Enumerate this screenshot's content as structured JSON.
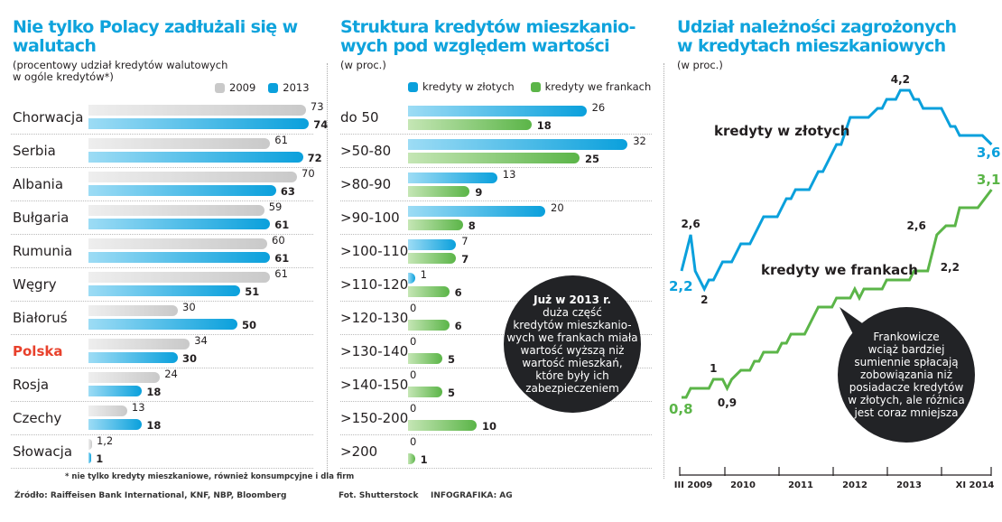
{
  "chart_data": [
    {
      "type": "bar",
      "title": "Nie tylko Polacy zadłużali się w walutach",
      "subtitle": "(procentowy udział kredytów walutowych w ogóle kredytów*)",
      "legend": "top-right",
      "categories": [
        "Chorwacja",
        "Serbia",
        "Albania",
        "Bułgaria",
        "Rumunia",
        "Węgry",
        "Białoruś",
        "Polska",
        "Rosja",
        "Czechy",
        "Słowacja"
      ],
      "highlight_category": "Polska",
      "highlight_color": "#e8412c",
      "series": [
        {
          "name": "2009",
          "color": "#c9c9c9",
          "values": [
            73,
            61,
            70,
            59,
            60,
            61,
            30,
            34,
            24,
            13,
            1.2
          ],
          "labels": [
            "73",
            "61",
            "70",
            "59",
            "60",
            "61",
            "30",
            "34",
            "24",
            "13",
            "1,2"
          ]
        },
        {
          "name": "2013",
          "color": "#0aa0dc",
          "values": [
            74,
            72,
            63,
            61,
            61,
            51,
            50,
            30,
            18,
            18,
            1
          ],
          "labels": [
            "74",
            "72",
            "63",
            "61",
            "61",
            "51",
            "50",
            "30",
            "18",
            "18",
            "1"
          ]
        }
      ],
      "footnote": "* nie tylko kredyty mieszkaniowe, również konsumpcyjne i dla firm",
      "source": "Źródło: Raiffeisen Bank International, KNF, NBP, Bloomberg"
    },
    {
      "type": "bar",
      "title": "Struktura kredytów mieszkanio-wych pod względem wartości",
      "title_lines": [
        "Struktura kredytów mieszkanio-",
        "wych pod względem wartości"
      ],
      "subtitle": "(w proc.)",
      "legend": "top",
      "categories": [
        "do 50",
        ">50-80",
        ">80-90",
        ">90-100",
        ">100-110",
        ">110-120",
        ">120-130",
        ">130-140",
        ">140-150",
        ">150-200",
        ">200"
      ],
      "series": [
        {
          "name": "kredyty w złotych",
          "color": "#0aa0dc",
          "values": [
            26,
            32,
            13,
            20,
            7,
            1,
            0,
            0,
            0,
            0,
            0
          ]
        },
        {
          "name": "kredyty we frankach",
          "color": "#5bb548",
          "values": [
            18,
            25,
            9,
            8,
            7,
            6,
            6,
            5,
            5,
            10,
            1
          ]
        }
      ],
      "annotation": {
        "bold": "Już w 2013 r.",
        "lines": [
          "duża część",
          "kredytów mieszkanio-",
          "wych we frankach miała",
          "wartość wyższą niż",
          "wartość mieszkań,",
          "które były ich",
          "zabezpieczeniem"
        ]
      },
      "credits": [
        "Fot. Shutterstock",
        "INFOGRAFIKA: AG"
      ]
    },
    {
      "type": "line",
      "title": "Udział należności zagrożonych w kredytach mieszkaniowych",
      "title_lines": [
        "Udział należności zagrożonych",
        "w kredytach mieszkaniowych"
      ],
      "subtitle": "(w proc.)",
      "xticks": [
        "III 2009",
        "2010",
        "2011",
        "2012",
        "2013",
        "XI 2014"
      ],
      "series": [
        {
          "name": "kredyty w złotych",
          "color": "#0aa0dc",
          "points": [
            [
              "2009-03",
              2.2
            ],
            [
              "2009-05",
              2.6
            ],
            [
              "2009-06",
              2.2
            ],
            [
              "2009-08",
              2.0
            ],
            [
              "2009-09",
              2.1
            ],
            [
              "2009-10",
              2.1
            ],
            [
              "2009-12",
              2.3
            ],
            [
              "2010-02",
              2.3
            ],
            [
              "2010-04",
              2.5
            ],
            [
              "2010-06",
              2.5
            ],
            [
              "2010-09",
              2.8
            ],
            [
              "2010-12",
              2.8
            ],
            [
              "2011-02",
              3.0
            ],
            [
              "2011-03",
              3.0
            ],
            [
              "2011-04",
              3.1
            ],
            [
              "2011-07",
              3.1
            ],
            [
              "2011-09",
              3.3
            ],
            [
              "2011-10",
              3.3
            ],
            [
              "2012-01",
              3.6
            ],
            [
              "2012-02",
              3.6
            ],
            [
              "2012-04",
              3.9
            ],
            [
              "2012-08",
              3.9
            ],
            [
              "2012-10",
              4.0
            ],
            [
              "2012-11",
              4.0
            ],
            [
              "2012-12",
              4.1
            ],
            [
              "2013-02",
              4.1
            ],
            [
              "2013-03",
              4.2
            ],
            [
              "2013-05",
              4.2
            ],
            [
              "2013-06",
              4.1
            ],
            [
              "2013-07",
              4.1
            ],
            [
              "2013-08",
              4.0
            ],
            [
              "2013-12",
              4.0
            ],
            [
              "2014-02",
              3.8
            ],
            [
              "2014-03",
              3.8
            ],
            [
              "2014-04",
              3.7
            ],
            [
              "2014-09",
              3.7
            ],
            [
              "2014-11",
              3.6
            ]
          ],
          "labels": [
            {
              "date": "2009-03",
              "text": "2,2"
            },
            {
              "date": "2009-05",
              "text": "2,6"
            },
            {
              "date": "2009-08",
              "text": "2"
            },
            {
              "date": "2013-03",
              "text": "4,2"
            },
            {
              "date": "2014-11",
              "text": "3,6"
            }
          ]
        },
        {
          "name": "kredyty we frankach",
          "color": "#5bb548",
          "points": [
            [
              "2009-03",
              0.8
            ],
            [
              "2009-04",
              0.8
            ],
            [
              "2009-05",
              0.9
            ],
            [
              "2009-09",
              0.9
            ],
            [
              "2009-10",
              1.0
            ],
            [
              "2009-12",
              1.0
            ],
            [
              "2010-01",
              0.9
            ],
            [
              "2010-02",
              1.0
            ],
            [
              "2010-04",
              1.1
            ],
            [
              "2010-06",
              1.1
            ],
            [
              "2010-07",
              1.2
            ],
            [
              "2010-08",
              1.2
            ],
            [
              "2010-09",
              1.3
            ],
            [
              "2010-12",
              1.3
            ],
            [
              "2011-01",
              1.4
            ],
            [
              "2011-02",
              1.4
            ],
            [
              "2011-03",
              1.5
            ],
            [
              "2011-06",
              1.5
            ],
            [
              "2011-09",
              1.8
            ],
            [
              "2011-12",
              1.8
            ],
            [
              "2012-01",
              1.9
            ],
            [
              "2012-04",
              1.9
            ],
            [
              "2012-05",
              2.0
            ],
            [
              "2012-06",
              1.9
            ],
            [
              "2012-07",
              2.0
            ],
            [
              "2012-11",
              2.0
            ],
            [
              "2012-12",
              2.1
            ],
            [
              "2013-05",
              2.1
            ],
            [
              "2013-06",
              2.2
            ],
            [
              "2013-09",
              2.2
            ],
            [
              "2013-11",
              2.6
            ],
            [
              "2014-01",
              2.7
            ],
            [
              "2014-03",
              2.7
            ],
            [
              "2014-04",
              2.9
            ],
            [
              "2014-08",
              2.9
            ],
            [
              "2014-11",
              3.1
            ]
          ],
          "labels": [
            {
              "date": "2009-03",
              "text": "0,8"
            },
            {
              "date": "2009-10",
              "text": "1"
            },
            {
              "date": "2010-01",
              "text": "0,9"
            },
            {
              "date": "2013-09",
              "text": "2,2"
            },
            {
              "date": "2013-11",
              "text": "2,6"
            },
            {
              "date": "2014-11",
              "text": "3,1"
            }
          ]
        }
      ],
      "annotation": {
        "lines": [
          "Frankowicze",
          "wciąż bardziej",
          "sumiennie spłacają",
          "zobowiązania niż",
          "posiadacze kredytów",
          "w złotych, ale różnica",
          "jest coraz mniejsza"
        ]
      }
    }
  ]
}
